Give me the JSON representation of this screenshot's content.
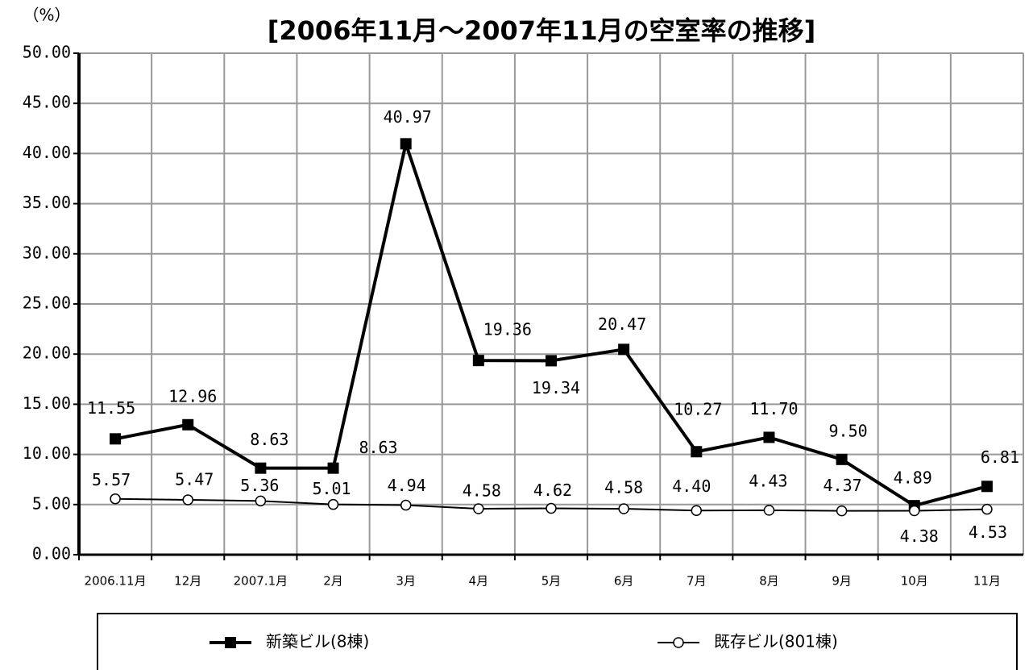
{
  "chart_data": {
    "type": "line",
    "title": "[2006年11月～2007年11月の空室率の推移]",
    "y_label": "（%）",
    "categories": [
      "2006.11月",
      "12月",
      "2007.1月",
      "2月",
      "3月",
      "4月",
      "5月",
      "6月",
      "7月",
      "8月",
      "9月",
      "10月",
      "11月"
    ],
    "series": [
      {
        "name": "新築ビル(8棟)",
        "color": "#000000",
        "marker": "square",
        "values": [
          11.55,
          12.96,
          8.63,
          8.63,
          40.97,
          19.36,
          19.34,
          20.47,
          10.27,
          11.7,
          9.5,
          4.89,
          6.81
        ],
        "value_labels": [
          "11.55",
          "12.96",
          "8.63",
          "8.63",
          "40.97",
          "19.36",
          "19.34",
          "20.47",
          "10.27",
          "11.70",
          "9.50",
          "4.89",
          "6.81"
        ]
      },
      {
        "name": "既存ビル(801棟)",
        "color": "#000000",
        "marker": "circle",
        "values": [
          5.57,
          5.47,
          5.36,
          5.01,
          4.94,
          4.58,
          4.62,
          4.58,
          4.4,
          4.43,
          4.37,
          4.38,
          4.53
        ],
        "value_labels": [
          "5.57",
          "5.47",
          "5.36",
          "5.01",
          "4.94",
          "4.58",
          "4.62",
          "4.58",
          "4.40",
          "4.43",
          "4.37",
          "4.38",
          "4.53"
        ]
      }
    ],
    "ylim": [
      0,
      50
    ],
    "yticks": [
      {
        "value": 0,
        "label": "0.00"
      },
      {
        "value": 5,
        "label": "5.00"
      },
      {
        "value": 10,
        "label": "10.00"
      },
      {
        "value": 15,
        "label": "15.00"
      },
      {
        "value": 20,
        "label": "20.00"
      },
      {
        "value": 25,
        "label": "25.00"
      },
      {
        "value": 30,
        "label": "30.00"
      },
      {
        "value": 35,
        "label": "35.00"
      },
      {
        "value": 40,
        "label": "40.00"
      },
      {
        "value": 45,
        "label": "45.00"
      },
      {
        "value": 50,
        "label": "50.00"
      }
    ],
    "grid": true,
    "legend": "bottom"
  }
}
